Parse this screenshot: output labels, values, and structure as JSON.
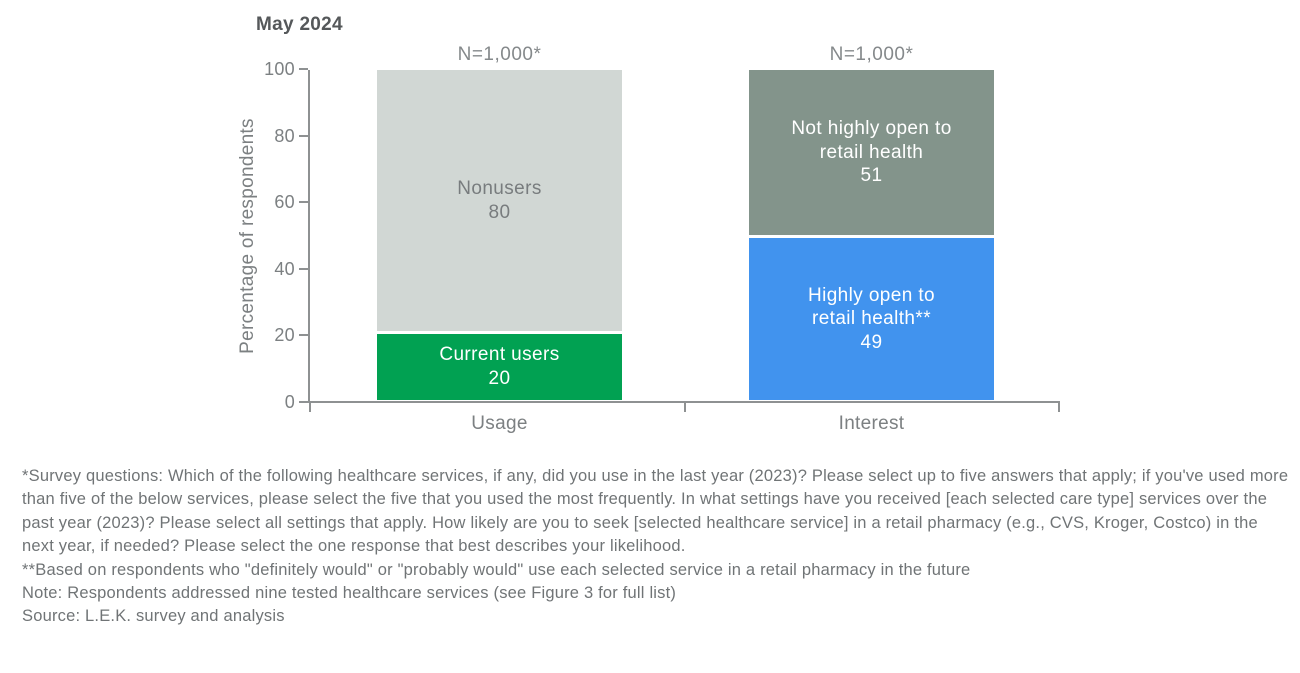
{
  "chart_data": {
    "type": "bar",
    "subtype": "stacked-percentage-bar",
    "title": "May 2024",
    "ylabel": "Percentage of respondents",
    "ylim": [
      0,
      100
    ],
    "yticks": [
      0,
      20,
      40,
      60,
      80,
      100
    ],
    "categories": [
      "Usage",
      "Interest"
    ],
    "n_labels": [
      "N=1,000*",
      "N=1,000*"
    ],
    "bars": [
      {
        "category": "Usage",
        "segments": [
          {
            "label": "Current users",
            "value": 20,
            "color": "#01a152",
            "text_color": "#ffffff"
          },
          {
            "label": "Nonusers",
            "value": 80,
            "color": "#d1d7d4",
            "text_color": "#787c7e"
          }
        ]
      },
      {
        "category": "Interest",
        "segments": [
          {
            "label": "Highly open to\nretail health**",
            "value": 49,
            "color": "#4193ee",
            "text_color": "#ffffff"
          },
          {
            "label": "Not highly open to\nretail health",
            "value": 51,
            "color": "#83948b",
            "text_color": "#ffffff"
          }
        ]
      }
    ],
    "grid": false,
    "legend": "none (labels inside segments)"
  },
  "colors": {
    "green": "#01a152",
    "blue": "#4193ee",
    "sage_gray": "#83948b",
    "light_gray": "#d1d7d4",
    "axis_gray": "#8e9192",
    "text_gray": "#707476"
  },
  "footnotes": {
    "survey_questions": "*Survey questions: Which of the following healthcare services, if any, did you use in the last year (2023)? Please select up to five answers that apply; if you've used more than five of the below services, please select the five that you used the most frequently. In what settings have you received [each selected care type] services over the past year (2023)? Please select all settings that apply. How likely are you to seek [selected healthcare service] in a retail pharmacy (e.g., CVS, Kroger, Costco) in the next year, if needed? Please select the one response that best describes your likelihood.",
    "based_on": "**Based on respondents who \"definitely would\" or \"probably would\" use each selected service in a retail pharmacy in the future",
    "note": "Note: Respondents addressed nine tested healthcare services (see Figure 3 for full list)",
    "source": "Source: L.E.K. survey and analysis"
  }
}
